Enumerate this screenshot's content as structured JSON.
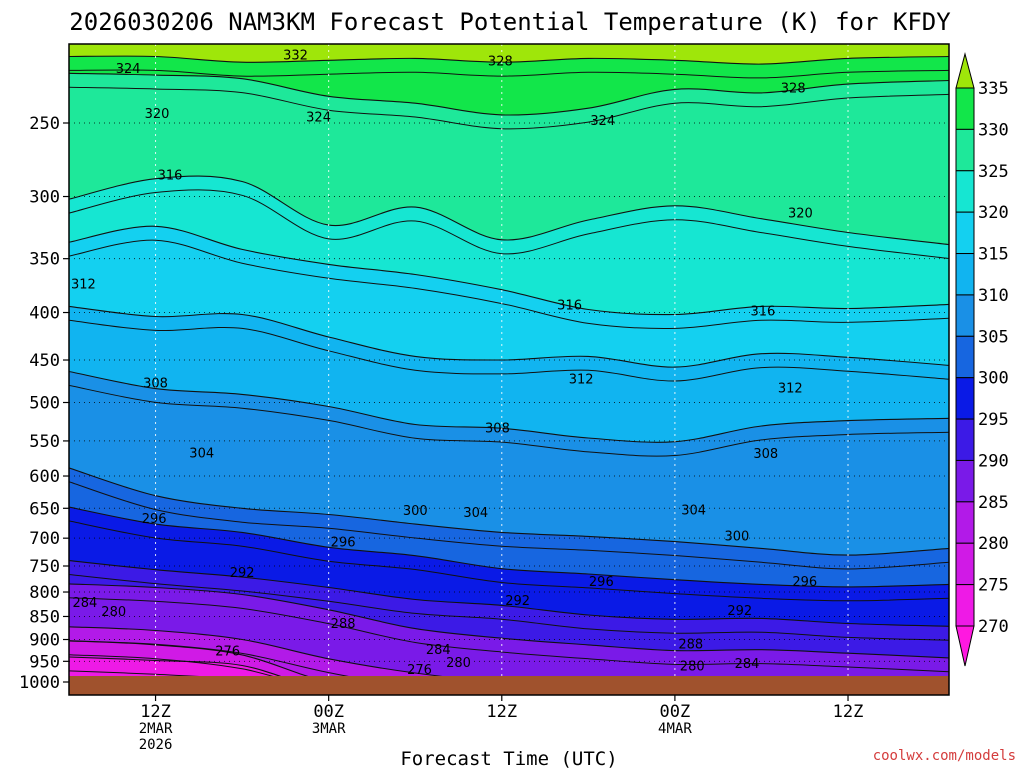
{
  "chart_data": {
    "type": "contour",
    "title": "2026030206 NAM3KM Forecast Potential Temperature (K) for KFDY",
    "xlabel": "Forecast Time (UTC)",
    "ylabel": "",
    "credit": "coolwx.com/models",
    "x_ticks": [
      {
        "lines": [
          "12Z",
          "2MAR",
          "2026"
        ]
      },
      {
        "lines": [
          "00Z",
          "3MAR"
        ]
      },
      {
        "lines": [
          "12Z"
        ]
      },
      {
        "lines": [
          "00Z",
          "4MAR"
        ]
      },
      {
        "lines": [
          "12Z"
        ]
      }
    ],
    "x_tick_hours": [
      12,
      24,
      36,
      48,
      60
    ],
    "xlim_hours": [
      6,
      67
    ],
    "y_ticks": [
      "250",
      "300",
      "350",
      "400",
      "450",
      "500",
      "550",
      "600",
      "650",
      "700",
      "750",
      "800",
      "850",
      "900",
      "950",
      "1000"
    ],
    "y_tick_values": [
      250,
      300,
      350,
      400,
      450,
      500,
      550,
      600,
      650,
      700,
      750,
      800,
      850,
      900,
      950,
      1000
    ],
    "ylim_hpa": [
      200,
      1020
    ],
    "colorbar": {
      "labels": [
        "335",
        "330",
        "325",
        "320",
        "315",
        "310",
        "305",
        "300",
        "295",
        "290",
        "285",
        "280",
        "275",
        "270"
      ],
      "bin_colors": [
        "#9fe60a",
        "#12e64a",
        "#1ee89a",
        "#16e6d2",
        "#14d0f0",
        "#11b4f0",
        "#1a90e6",
        "#1766e0",
        "#0a1ae6",
        "#3c1ae6",
        "#7a1ae8",
        "#b21ae8",
        "#d01ae6",
        "#ee1ae6",
        "#ff18e0"
      ]
    },
    "fill_bands": [
      {
        "value": 330,
        "color": "#12e64a",
        "pts": [
          [
            6,
            212
          ],
          [
            12,
            212
          ],
          [
            18,
            215
          ],
          [
            24,
            214
          ],
          [
            30,
            213
          ],
          [
            36,
            215
          ],
          [
            42,
            213
          ],
          [
            48,
            214
          ],
          [
            54,
            216
          ],
          [
            60,
            213
          ],
          [
            67,
            212
          ]
        ]
      },
      {
        "value": 325,
        "color": "#1ee89a",
        "pts": [
          [
            6,
            221
          ],
          [
            12,
            222
          ],
          [
            18,
            224
          ],
          [
            24,
            234
          ],
          [
            30,
            238
          ],
          [
            36,
            245
          ],
          [
            42,
            241
          ],
          [
            48,
            230
          ],
          [
            54,
            232
          ],
          [
            60,
            227
          ],
          [
            67,
            225
          ]
        ]
      },
      {
        "value": 320,
        "color": "#16e6d2",
        "pts": [
          [
            6,
            302
          ],
          [
            12,
            287
          ],
          [
            18,
            289
          ],
          [
            24,
            322
          ],
          [
            30,
            308
          ],
          [
            36,
            334
          ],
          [
            42,
            318
          ],
          [
            48,
            307
          ],
          [
            54,
            317
          ],
          [
            60,
            328
          ],
          [
            67,
            338
          ]
        ]
      },
      {
        "value": 315,
        "color": "#14d0f0",
        "pts": [
          [
            6,
            336
          ],
          [
            12,
            323
          ],
          [
            18,
            342
          ],
          [
            24,
            355
          ],
          [
            30,
            364
          ],
          [
            36,
            378
          ],
          [
            42,
            397
          ],
          [
            48,
            402
          ],
          [
            54,
            394
          ],
          [
            60,
            396
          ],
          [
            67,
            392
          ]
        ]
      },
      {
        "value": 310,
        "color": "#11b4f0",
        "pts": [
          [
            6,
            394
          ],
          [
            12,
            404
          ],
          [
            18,
            402
          ],
          [
            24,
            425
          ],
          [
            30,
            446
          ],
          [
            36,
            450
          ],
          [
            42,
            446
          ],
          [
            48,
            458
          ],
          [
            54,
            443
          ],
          [
            60,
            447
          ],
          [
            67,
            456
          ]
        ]
      },
      {
        "value": 305,
        "color": "#1a90e6",
        "pts": [
          [
            6,
            463
          ],
          [
            12,
            483
          ],
          [
            18,
            490
          ],
          [
            24,
            505
          ],
          [
            30,
            528
          ],
          [
            36,
            533
          ],
          [
            42,
            546
          ],
          [
            48,
            551
          ],
          [
            54,
            530
          ],
          [
            60,
            523
          ],
          [
            67,
            520
          ]
        ]
      },
      {
        "value": 300,
        "color": "#1766e0",
        "pts": [
          [
            6,
            588
          ],
          [
            12,
            630
          ],
          [
            18,
            650
          ],
          [
            24,
            660
          ],
          [
            30,
            676
          ],
          [
            36,
            690
          ],
          [
            42,
            697
          ],
          [
            48,
            706
          ],
          [
            54,
            718
          ],
          [
            60,
            730
          ],
          [
            67,
            718
          ]
        ]
      },
      {
        "value": 295,
        "color": "#0a1ae6",
        "pts": [
          [
            6,
            648
          ],
          [
            12,
            676
          ],
          [
            18,
            690
          ],
          [
            24,
            716
          ],
          [
            30,
            731
          ],
          [
            36,
            755
          ],
          [
            42,
            765
          ],
          [
            48,
            776
          ],
          [
            54,
            785
          ],
          [
            60,
            790
          ],
          [
            67,
            785
          ]
        ]
      },
      {
        "value": 290,
        "color": "#3c1ae6",
        "pts": [
          [
            6,
            740
          ],
          [
            12,
            757
          ],
          [
            18,
            771
          ],
          [
            24,
            791
          ],
          [
            30,
            815
          ],
          [
            36,
            827
          ],
          [
            42,
            847
          ],
          [
            48,
            856
          ],
          [
            54,
            854
          ],
          [
            60,
            865
          ],
          [
            67,
            871
          ]
        ]
      },
      {
        "value": 285,
        "color": "#7a1ae8",
        "pts": [
          [
            6,
            784
          ],
          [
            12,
            791
          ],
          [
            18,
            805
          ],
          [
            24,
            836
          ],
          [
            30,
            876
          ],
          [
            36,
            897
          ],
          [
            42,
            912
          ],
          [
            48,
            925
          ],
          [
            54,
            923
          ],
          [
            60,
            931
          ],
          [
            67,
            942
          ]
        ]
      },
      {
        "value": 280,
        "color": "#b21ae8",
        "pts": [
          [
            6,
            872
          ],
          [
            12,
            880
          ],
          [
            18,
            900
          ],
          [
            24,
            944
          ],
          [
            30,
            978
          ],
          [
            36,
            1000
          ],
          [
            42,
            1000
          ],
          [
            48,
            1000
          ],
          [
            54,
            1000
          ],
          [
            60,
            995
          ],
          [
            67,
            990
          ]
        ]
      },
      {
        "value": 275,
        "color": "#d01ae6",
        "pts": [
          [
            6,
            903
          ],
          [
            12,
            912
          ],
          [
            18,
            935
          ],
          [
            24,
            1000
          ],
          [
            30,
            1020
          ],
          [
            36,
            1020
          ],
          [
            42,
            1020
          ],
          [
            48,
            1020
          ],
          [
            54,
            1020
          ],
          [
            60,
            1020
          ],
          [
            67,
            1020
          ]
        ]
      },
      {
        "value": 270,
        "color": "#ee1ae6",
        "pts": [
          [
            6,
            940
          ],
          [
            12,
            948
          ],
          [
            18,
            960
          ],
          [
            24,
            1020
          ],
          [
            30,
            1020
          ],
          [
            36,
            1020
          ],
          [
            42,
            1020
          ],
          [
            48,
            1020
          ],
          [
            54,
            1020
          ],
          [
            60,
            1020
          ],
          [
            67,
            1020
          ]
        ]
      }
    ],
    "contour_labels": [
      {
        "text": "332",
        "hour": 21.7,
        "hpa": 211
      },
      {
        "text": "328",
        "hour": 35.9,
        "hpa": 214
      },
      {
        "text": "328",
        "hour": 56.2,
        "hpa": 229
      },
      {
        "text": "324",
        "hour": 10.1,
        "hpa": 218
      },
      {
        "text": "324",
        "hour": 23.3,
        "hpa": 246
      },
      {
        "text": "324",
        "hour": 43.0,
        "hpa": 248
      },
      {
        "text": "320",
        "hour": 12.1,
        "hpa": 244
      },
      {
        "text": "320",
        "hour": 56.7,
        "hpa": 312
      },
      {
        "text": "316",
        "hour": 13.0,
        "hpa": 284
      },
      {
        "text": "316",
        "hour": 40.7,
        "hpa": 392
      },
      {
        "text": "316",
        "hour": 54.1,
        "hpa": 398
      },
      {
        "text": "312",
        "hour": 7.0,
        "hpa": 372
      },
      {
        "text": "312",
        "hour": 41.5,
        "hpa": 471
      },
      {
        "text": "312",
        "hour": 56.0,
        "hpa": 482
      },
      {
        "text": "308",
        "hour": 12.0,
        "hpa": 476
      },
      {
        "text": "308",
        "hour": 35.7,
        "hpa": 532
      },
      {
        "text": "308",
        "hour": 54.3,
        "hpa": 567
      },
      {
        "text": "304",
        "hour": 15.2,
        "hpa": 566
      },
      {
        "text": "304",
        "hour": 34.2,
        "hpa": 656
      },
      {
        "text": "304",
        "hour": 49.3,
        "hpa": 652
      },
      {
        "text": "300",
        "hour": 30.0,
        "hpa": 653
      },
      {
        "text": "300",
        "hour": 52.3,
        "hpa": 695
      },
      {
        "text": "296",
        "hour": 11.9,
        "hpa": 666
      },
      {
        "text": "296",
        "hour": 25.0,
        "hpa": 706
      },
      {
        "text": "296",
        "hour": 42.9,
        "hpa": 778
      },
      {
        "text": "296",
        "hour": 57.0,
        "hpa": 778
      },
      {
        "text": "292",
        "hour": 18.0,
        "hpa": 761
      },
      {
        "text": "292",
        "hour": 37.1,
        "hpa": 816
      },
      {
        "text": "292",
        "hour": 52.5,
        "hpa": 836
      },
      {
        "text": "288",
        "hour": 25.0,
        "hpa": 864
      },
      {
        "text": "288",
        "hour": 49.1,
        "hpa": 909
      },
      {
        "text": "284",
        "hour": 7.1,
        "hpa": 820
      },
      {
        "text": "284",
        "hour": 31.6,
        "hpa": 921
      },
      {
        "text": "284",
        "hour": 53.0,
        "hpa": 954
      },
      {
        "text": "280",
        "hour": 9.1,
        "hpa": 839
      },
      {
        "text": "280",
        "hour": 33.0,
        "hpa": 952
      },
      {
        "text": "280",
        "hour": 49.2,
        "hpa": 960
      },
      {
        "text": "276",
        "hour": 17.0,
        "hpa": 925
      },
      {
        "text": "276",
        "hour": 30.3,
        "hpa": 968
      }
    ],
    "surface_color": "#a0522d",
    "surface_hpa": 1000
  }
}
